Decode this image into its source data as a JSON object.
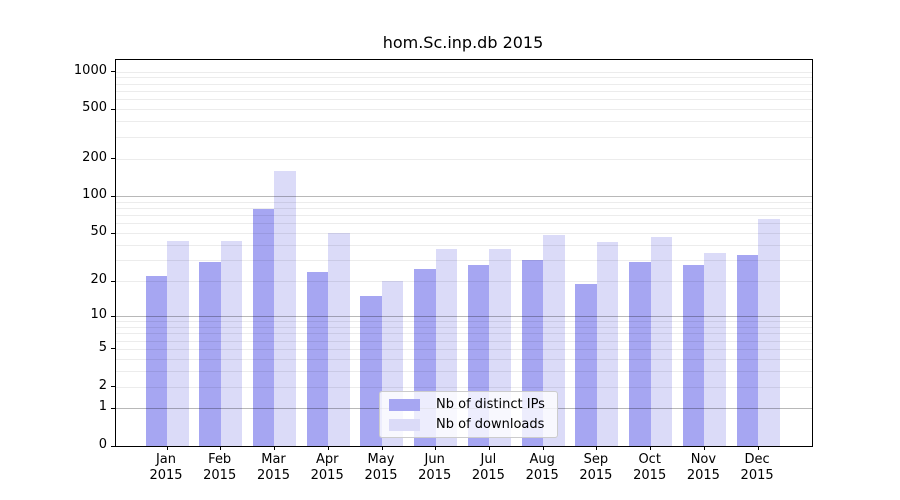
{
  "title": "hom.Sc.inp.db 2015",
  "chart_data": {
    "type": "bar",
    "title": "hom.Sc.inp.db 2015",
    "y_scale": "log1p (position proportional to log10(value+1))",
    "categories": [
      "Jan",
      "Feb",
      "Mar",
      "Apr",
      "May",
      "Jun",
      "Jul",
      "Aug",
      "Sep",
      "Oct",
      "Nov",
      "Dec"
    ],
    "year_label": "2015",
    "series": [
      {
        "name": "Nb of distinct IPs",
        "color": "#a6a6f2",
        "values": [
          22,
          29,
          79,
          24,
          15,
          25,
          27,
          30,
          19,
          29,
          27,
          33
        ]
      },
      {
        "name": "Nb of downloads",
        "color": "#dbdbf8",
        "values": [
          43,
          43,
          159,
          50,
          20,
          37,
          37,
          48,
          42,
          46,
          34,
          65
        ]
      }
    ],
    "y_ticks": [
      0,
      1,
      2,
      5,
      10,
      20,
      50,
      100,
      200,
      500,
      1000
    ],
    "y_major_gridlines": [
      1,
      10,
      100
    ],
    "y_minor_gridlines": [
      2,
      3,
      4,
      5,
      6,
      7,
      8,
      9,
      20,
      30,
      40,
      50,
      60,
      70,
      80,
      90,
      200,
      300,
      400,
      500,
      600,
      700,
      800,
      900,
      1000
    ],
    "ylim": [
      0,
      1220
    ],
    "xlabel": "",
    "ylabel": "",
    "grid": true,
    "legend_position": "lower center"
  }
}
